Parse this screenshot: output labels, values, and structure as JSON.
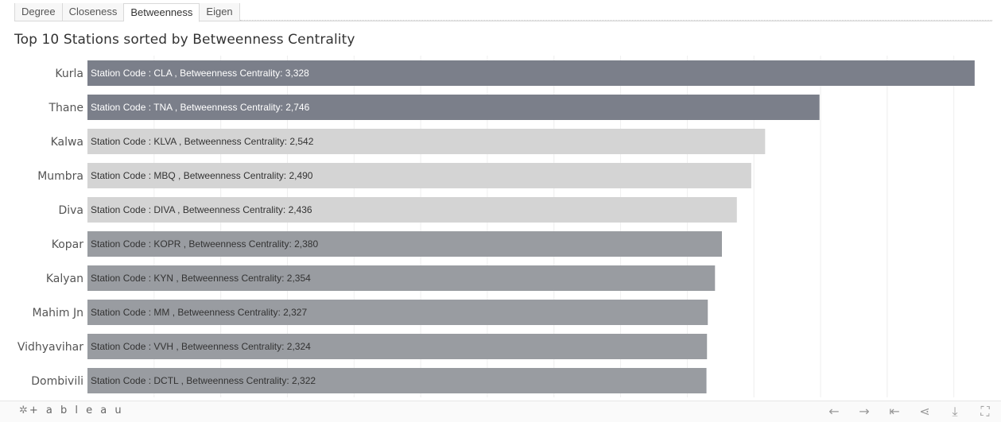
{
  "tabs": [
    {
      "label": "Degree",
      "active": false
    },
    {
      "label": "Closeness",
      "active": false
    },
    {
      "label": "Betweenness",
      "active": true
    },
    {
      "label": "Eigen",
      "active": false
    }
  ],
  "footer": {
    "logo_text": "+ a b l e a u",
    "controls": [
      {
        "name": "undo-icon",
        "glyph": "←"
      },
      {
        "name": "redo-icon",
        "glyph": "→"
      },
      {
        "name": "revert-icon",
        "glyph": "⇤"
      },
      {
        "name": "share-icon",
        "glyph": "⋖"
      },
      {
        "name": "download-icon",
        "glyph": "⤓"
      },
      {
        "name": "fullscreen-icon",
        "glyph": "⛶"
      }
    ]
  },
  "chart_data": {
    "type": "bar",
    "orientation": "horizontal",
    "title": "Top 10 Stations sorted by Betweenness Centrality",
    "categories": [
      "Kurla",
      "Thane",
      "Kalwa",
      "Mumbra",
      "Diva",
      "Kopar",
      "Kalyan",
      "Mahim Jn",
      "Vidhyavihar",
      "Dombivili"
    ],
    "codes": [
      "CLA",
      "TNA",
      "KLVA",
      "MBQ",
      "DIVA",
      "KOPR",
      "KYN",
      "MM",
      "VVH",
      "DCTL"
    ],
    "values": [
      3328,
      2746,
      2542,
      2490,
      2436,
      2380,
      2354,
      2327,
      2324,
      2322
    ],
    "value_labels": [
      "3,328",
      "2,746",
      "2,542",
      "2,490",
      "2,436",
      "2,380",
      "2,354",
      "2,327",
      "2,324",
      "2,322"
    ],
    "bar_colors": [
      "#7b7f8a",
      "#7b7f8a",
      "#d4d4d4",
      "#d4d4d4",
      "#d4d4d4",
      "#999ca1",
      "#999ca1",
      "#999ca1",
      "#999ca1",
      "#999ca1"
    ],
    "label_colors": [
      "#ffffff",
      "#ffffff",
      "#333333",
      "#333333",
      "#333333",
      "#333333",
      "#333333",
      "#333333",
      "#333333",
      "#333333"
    ],
    "label_prefix": "Station Code : ",
    "label_middle": " , Betweenness Centrality: ",
    "xlim": [
      0,
      3400
    ],
    "grid": true
  }
}
